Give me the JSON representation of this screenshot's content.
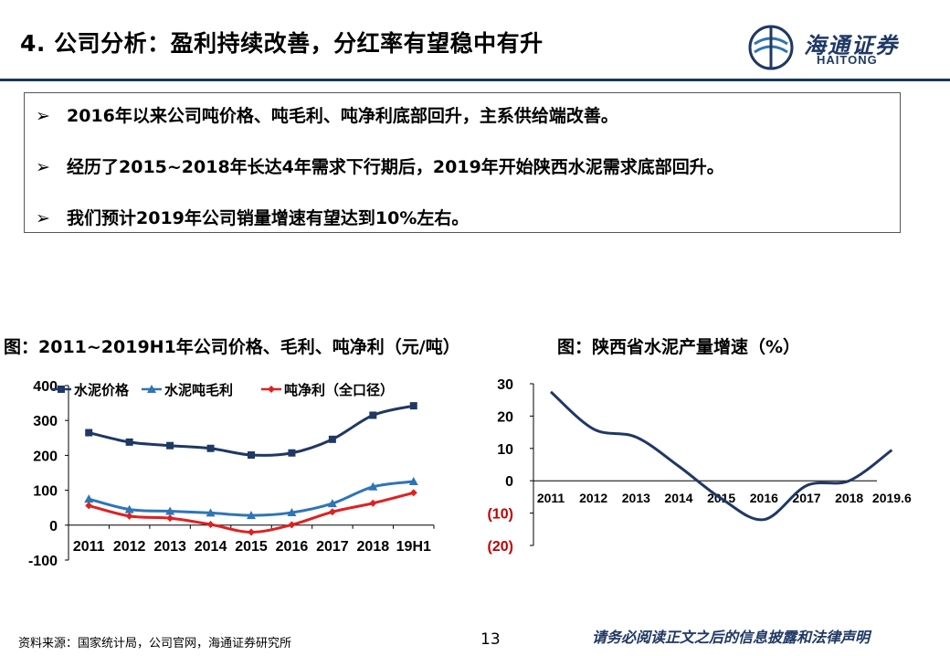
{
  "header": {
    "title": "4. 公司分析：盈利持续改善，分红率有望稳中有升",
    "logo_name": "海通证券",
    "logo_en": "HAITONG",
    "colors": {
      "rule": "#17375e",
      "brand": "#1f3864"
    }
  },
  "bullets": [
    {
      "icon": "arrow-right-icon",
      "text": "2016年以来公司吨价格、吨毛利、吨净利底部回升，主系供给端改善。"
    },
    {
      "icon": "arrow-right-icon",
      "text": "经历了2015~2018年长达4年需求下行期后，2019年开始陕西水泥需求底部回升。"
    },
    {
      "icon": "arrow-right-icon",
      "text": "我们预计2019年公司销量增速有望达到10%左右。"
    }
  ],
  "captions": {
    "left": "图：2011~2019H1年公司价格、毛利、吨净利（元/吨）",
    "right": "图：陕西省水泥产量增速（%）"
  },
  "chart_data": [
    {
      "type": "line",
      "title": "2011~2019H1年公司价格、毛利、吨净利（元/吨）",
      "categories": [
        "2011",
        "2012",
        "2013",
        "2014",
        "2015",
        "2016",
        "2017",
        "2018",
        "19H1"
      ],
      "series": [
        {
          "name": "水泥价格",
          "color": "#1f3864",
          "marker": "square",
          "values": [
            265,
            238,
            228,
            220,
            201,
            207,
            246,
            315,
            342
          ]
        },
        {
          "name": "水泥吨毛利",
          "color": "#2e75b6",
          "marker": "triangle",
          "values": [
            75,
            45,
            40,
            35,
            28,
            36,
            62,
            110,
            125
          ]
        },
        {
          "name": "吨净利（全口径）",
          "color": "#e02020",
          "marker": "diamond",
          "values": [
            56,
            26,
            20,
            2,
            -20,
            1,
            38,
            63,
            93
          ]
        }
      ],
      "ylim": [
        -100,
        400
      ],
      "yticks": [
        "400",
        "300",
        "200",
        "100",
        "0",
        "-100"
      ],
      "ytick_values": [
        400,
        300,
        200,
        100,
        0,
        -100
      ],
      "legend": "top"
    },
    {
      "type": "line",
      "title": "陕西省水泥产量增速（%）",
      "categories": [
        "2011",
        "2012",
        "2013",
        "2014",
        "2015",
        "2016",
        "2017",
        "2018",
        "2019.6"
      ],
      "series": [
        {
          "name": "陕西省水泥产量增速",
          "color": "#1f3864",
          "values": [
            27.5,
            16,
            13.5,
            4.5,
            -5.5,
            -12,
            -1.5,
            0,
            9.5
          ]
        }
      ],
      "ylim": [
        -20,
        30
      ],
      "yticks": [
        "30",
        "20",
        "10",
        "0",
        "(10)",
        "(20)"
      ],
      "ytick_values": [
        30,
        20,
        10,
        0,
        -10,
        -20
      ],
      "negative_tick_color": "#c00000"
    }
  ],
  "footer": {
    "source": "资料来源：国家统计局，公司官网，海通证券研究所",
    "page": "13",
    "notice": "请务必阅读正文之后的信息披露和法律声明"
  }
}
